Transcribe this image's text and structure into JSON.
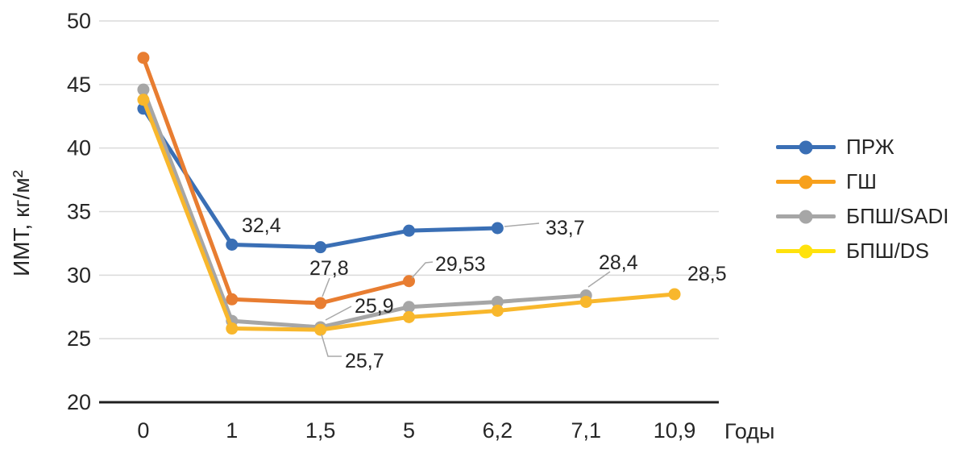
{
  "figure": {
    "background": "#FFFFFF",
    "text_color": "#262626"
  },
  "chart_data": {
    "type": "line",
    "title": "",
    "xlabel": "Годы",
    "ylabel": "ИМТ, кг/м²",
    "x_categories": [
      "0",
      "1",
      "1,5",
      "5",
      "6,2",
      "7,1",
      "10,9"
    ],
    "y_ticks": [
      20,
      25,
      30,
      35,
      40,
      45,
      50
    ],
    "ylim": [
      20,
      50
    ],
    "grid": "horizontal",
    "legend_position": "right",
    "colors": {
      "grid": "#DADADA",
      "axis": "#1F1F1F",
      "text": "#262626",
      "leader": "#A9A9A9"
    },
    "series": [
      {
        "name": "ПРЖ",
        "color": "#3A6FB5",
        "legend_color": "#3A6FB5",
        "values": [
          43.1,
          32.4,
          32.2,
          33.5,
          33.7,
          null,
          null
        ]
      },
      {
        "name": "ГШ",
        "color": "#E87D31",
        "legend_color": "#F7A01C",
        "values": [
          47.1,
          28.1,
          27.8,
          29.53,
          null,
          null,
          null
        ]
      },
      {
        "name": "БПШ/SADI",
        "color": "#A6A6A6",
        "legend_color": "#A6A6A6",
        "values": [
          44.6,
          26.4,
          25.9,
          27.5,
          27.9,
          28.4,
          null
        ]
      },
      {
        "name": "БПШ/DS",
        "color": "#F8B72C",
        "legend_color": "#FFE20C",
        "values": [
          43.8,
          25.8,
          25.7,
          26.7,
          27.2,
          27.9,
          28.5
        ]
      }
    ],
    "point_labels": [
      {
        "series": 0,
        "index": 1,
        "text": "32,4"
      },
      {
        "series": 0,
        "index": 4,
        "text": "33,7"
      },
      {
        "series": 1,
        "index": 2,
        "text": "27,8"
      },
      {
        "series": 1,
        "index": 3,
        "text": "29,53"
      },
      {
        "series": 2,
        "index": 2,
        "text": "25,9"
      },
      {
        "series": 2,
        "index": 5,
        "text": "28,4"
      },
      {
        "series": 3,
        "index": 2,
        "text": "25,7"
      },
      {
        "series": 3,
        "index": 6,
        "text": "28,5"
      }
    ]
  }
}
